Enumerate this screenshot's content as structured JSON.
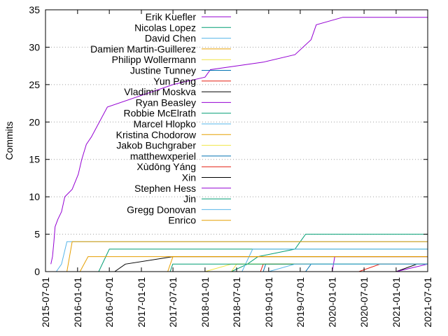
{
  "chart_data": {
    "type": "line",
    "title": "",
    "xlabel": "",
    "ylabel": "Commits",
    "xlim": [
      "2015-07-01",
      "2021-07-01"
    ],
    "ylim": [
      0,
      35
    ],
    "x_ticks": [
      "2015-07-01",
      "2016-01-01",
      "2016-07-01",
      "2017-01-01",
      "2017-07-01",
      "2018-01-01",
      "2018-07-01",
      "2019-01-01",
      "2019-07-01",
      "2020-01-01",
      "2020-07-01",
      "2021-01-01",
      "2021-07-01"
    ],
    "y_ticks": [
      0,
      5,
      10,
      15,
      20,
      25,
      30,
      35
    ],
    "grid": "horizontal dotted",
    "legend_position": "top-right",
    "series": [
      {
        "name": "Erik Kuefler",
        "color": "#9400d3",
        "points": [
          [
            "2015-08-01",
            1
          ],
          [
            "2015-08-10",
            2
          ],
          [
            "2015-08-18",
            4
          ],
          [
            "2015-08-25",
            6
          ],
          [
            "2015-09-10",
            7
          ],
          [
            "2015-10-01",
            8
          ],
          [
            "2015-10-20",
            10
          ],
          [
            "2015-12-01",
            11
          ],
          [
            "2016-01-05",
            13
          ],
          [
            "2016-01-25",
            15
          ],
          [
            "2016-02-20",
            17
          ],
          [
            "2016-03-20",
            18
          ],
          [
            "2016-06-20",
            22
          ],
          [
            "2017-07-01",
            25
          ],
          [
            "2018-01-01",
            26
          ],
          [
            "2018-02-01",
            27
          ],
          [
            "2018-12-01",
            28
          ],
          [
            "2019-06-01",
            29
          ],
          [
            "2019-09-01",
            31
          ],
          [
            "2019-10-01",
            33
          ],
          [
            "2020-03-01",
            34
          ],
          [
            "2021-07-01",
            34
          ]
        ]
      },
      {
        "name": "Nicolas Lopez",
        "color": "#009e73",
        "points": [
          [
            "2018-06-01",
            0
          ],
          [
            "2018-09-01",
            1
          ],
          [
            "2018-11-01",
            2
          ],
          [
            "2019-06-01",
            3
          ],
          [
            "2019-07-01",
            4
          ],
          [
            "2019-08-01",
            5
          ],
          [
            "2021-07-01",
            5
          ]
        ]
      },
      {
        "name": "David Chen",
        "color": "#56b4e9",
        "points": [
          [
            "2015-09-01",
            0
          ],
          [
            "2015-10-01",
            1
          ],
          [
            "2015-11-01",
            4
          ],
          [
            "2021-07-01",
            4
          ]
        ]
      },
      {
        "name": "Damien Martin-Guillerez",
        "color": "#e69f00",
        "points": [
          [
            "2015-11-01",
            0
          ],
          [
            "2015-12-01",
            4
          ],
          [
            "2021-07-01",
            4
          ]
        ]
      },
      {
        "name": "Philipp Wollermann",
        "color": "#f0e442",
        "points": [
          [
            "2018-01-01",
            0
          ],
          [
            "2018-06-01",
            1
          ],
          [
            "2021-07-01",
            1
          ]
        ]
      },
      {
        "name": "Justine Tunney",
        "color": "#0072b2",
        "points": [
          [
            "2018-12-01",
            0
          ],
          [
            "2018-12-15",
            1
          ],
          [
            "2021-07-01",
            1
          ]
        ]
      },
      {
        "name": "Yun Peng",
        "color": "#e51e10",
        "points": [
          [
            "2018-11-15",
            0
          ],
          [
            "2018-12-01",
            1
          ],
          [
            "2021-07-01",
            1
          ]
        ]
      },
      {
        "name": "Vladimir Moskva",
        "color": "#000000",
        "points": [
          [
            "2016-08-01",
            0
          ],
          [
            "2016-10-01",
            1
          ],
          [
            "2017-07-01",
            2
          ],
          [
            "2021-07-01",
            2
          ]
        ]
      },
      {
        "name": "Ryan Beasley",
        "color": "#9400d3",
        "points": [
          [
            "2020-01-01",
            0
          ],
          [
            "2020-01-15",
            2
          ],
          [
            "2021-07-01",
            2
          ]
        ]
      },
      {
        "name": "Robbie McElrath",
        "color": "#009e73",
        "points": [
          [
            "2016-05-01",
            0
          ],
          [
            "2016-07-01",
            3
          ],
          [
            "2021-07-01",
            3
          ]
        ]
      },
      {
        "name": "Marcel Hlopko",
        "color": "#56b4e9",
        "points": [
          [
            "2018-08-01",
            0
          ],
          [
            "2018-10-01",
            3
          ],
          [
            "2021-07-01",
            3
          ]
        ]
      },
      {
        "name": "Kristina Chodorow",
        "color": "#e69f00",
        "points": [
          [
            "2016-01-15",
            0
          ],
          [
            "2016-03-01",
            2
          ],
          [
            "2021-07-01",
            2
          ]
        ]
      },
      {
        "name": "Jakob Buchgraber",
        "color": "#f0e442",
        "points": [
          [
            "2018-06-01",
            0
          ],
          [
            "2018-07-01",
            1
          ],
          [
            "2021-07-01",
            1
          ]
        ]
      },
      {
        "name": "matthewxperiel",
        "color": "#0072b2",
        "points": [
          [
            "2019-08-01",
            0
          ],
          [
            "2019-09-01",
            1
          ],
          [
            "2021-07-01",
            1
          ]
        ]
      },
      {
        "name": "Xùdōng Yáng",
        "color": "#e51e10",
        "points": [
          [
            "2020-06-01",
            0
          ],
          [
            "2020-10-01",
            1
          ],
          [
            "2021-07-01",
            1
          ]
        ]
      },
      {
        "name": "Xin",
        "color": "#000000",
        "points": [
          [
            "2021-01-01",
            0
          ],
          [
            "2021-05-01",
            1
          ],
          [
            "2021-07-01",
            1
          ]
        ]
      },
      {
        "name": "Stephen Hess",
        "color": "#9400d3",
        "points": [
          [
            "2021-01-01",
            0
          ],
          [
            "2021-07-01",
            1
          ]
        ]
      },
      {
        "name": "Jin",
        "color": "#009e73",
        "points": [
          [
            "2017-06-15",
            0
          ],
          [
            "2017-06-30",
            1
          ],
          [
            "2021-07-01",
            1
          ]
        ]
      },
      {
        "name": "Gregg Donovan",
        "color": "#56b4e9",
        "points": [
          [
            "2019-01-01",
            0
          ],
          [
            "2019-06-01",
            1
          ],
          [
            "2021-07-01",
            1
          ]
        ]
      },
      {
        "name": "Enrico",
        "color": "#e69f00",
        "points": [
          [
            "2017-06-01",
            0
          ],
          [
            "2017-07-01",
            2
          ],
          [
            "2021-07-01",
            2
          ]
        ]
      }
    ]
  }
}
